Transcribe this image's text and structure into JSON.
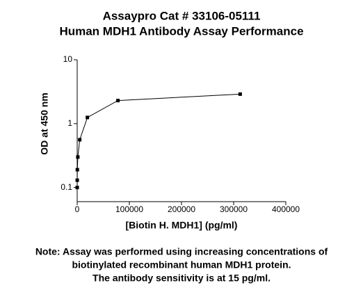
{
  "chart_data": {
    "type": "line",
    "title": [
      "Assaypro Cat # 33106-05111",
      "Human MDH1 Antibody Assay Performance"
    ],
    "x_label": "[Biotin H. MDH1] (pg/ml)",
    "y_label": "OD at 450 nm",
    "note": [
      "Note: Assay was performed using increasing concentrations of",
      "biotinylated recombinant human MDH1 protein.",
      "The antibody sensitivity is at 15 pg/ml."
    ],
    "x": [
      19,
      76,
      305,
      1221,
      4883,
      19531,
      78125,
      312500
    ],
    "series": [
      {
        "name": "MDH1",
        "color": "#000000",
        "values": [
          0.1,
          0.13,
          0.19,
          0.3,
          0.56,
          1.25,
          2.3,
          2.9
        ]
      }
    ],
    "xlim": [
      0,
      400000
    ],
    "xticks": [
      0,
      100000,
      200000,
      300000,
      400000
    ],
    "ylim": [
      0.06,
      10
    ],
    "yticks": [
      0.1,
      1,
      10
    ],
    "log_y": true,
    "grid": false
  }
}
